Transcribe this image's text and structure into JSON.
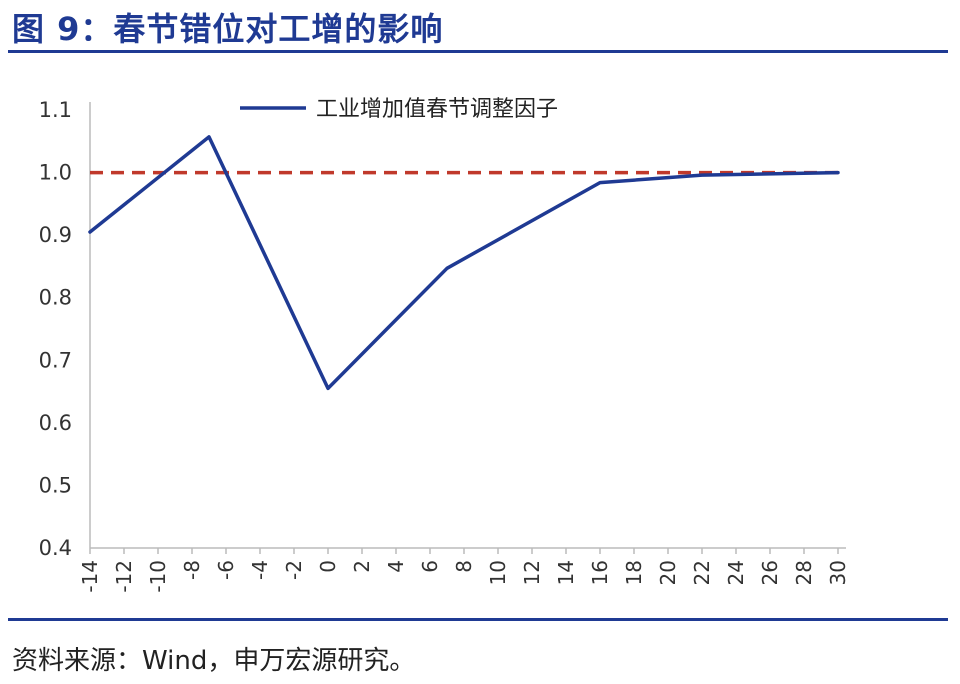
{
  "figure": {
    "title": "图 9：春节错位对工增的影响",
    "source": "资料来源：Wind，申万宏源研究。"
  },
  "chart_data": {
    "type": "line",
    "x": [
      -14,
      -12,
      -10,
      -8,
      -6,
      -4,
      -2,
      0,
      2,
      4,
      6,
      8,
      10,
      12,
      14,
      16,
      18,
      20,
      22,
      24,
      26,
      28,
      30
    ],
    "x_tick_labels": [
      "-14",
      "-12",
      "-10",
      "-8",
      "-6",
      "-4",
      "-2",
      "0",
      "2",
      "4",
      "6",
      "8",
      "10",
      "12",
      "14",
      "16",
      "18",
      "20",
      "22",
      "24",
      "26",
      "28",
      "30"
    ],
    "series": [
      {
        "name": "工业增加值春节调整因子",
        "color": "#1f3a93",
        "points": [
          [
            -14,
            0.905
          ],
          [
            -7,
            1.057
          ],
          [
            0,
            0.655
          ],
          [
            7,
            0.847
          ],
          [
            16,
            0.984
          ],
          [
            22,
            0.996
          ],
          [
            30,
            1.0
          ]
        ]
      }
    ],
    "reference_line": {
      "y": 1.0,
      "color": "#c0392b",
      "style": "dashed"
    },
    "y_tick_labels": [
      "0.4",
      "0.5",
      "0.6",
      "0.7",
      "0.8",
      "0.9",
      "1.0",
      "1.1"
    ],
    "ylim": [
      0.4,
      1.1
    ],
    "xlim": [
      -14,
      30
    ],
    "grid": false,
    "legend_position": "top-center"
  }
}
